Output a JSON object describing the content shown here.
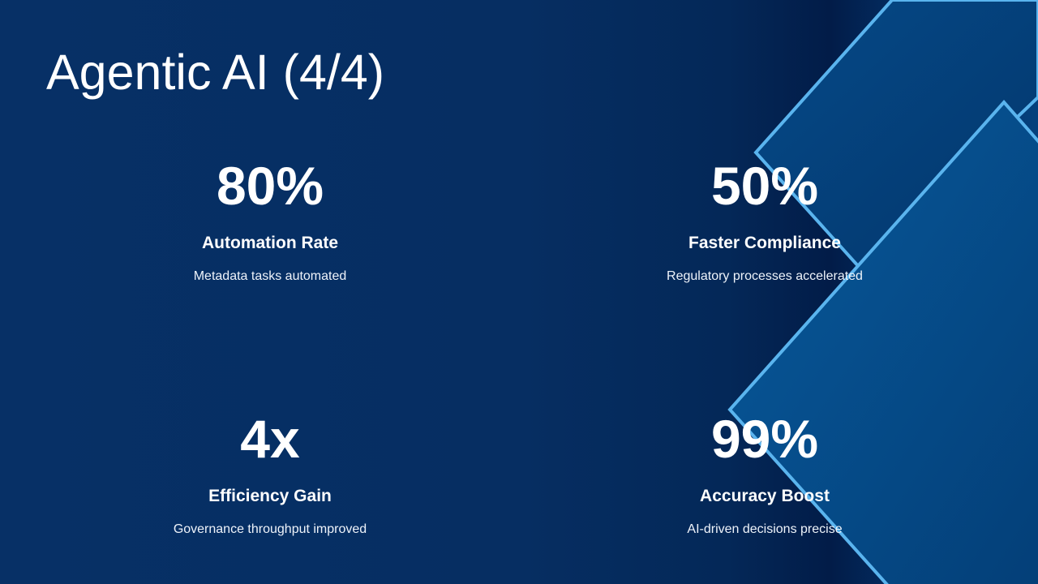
{
  "title": "Agentic AI (4/4)",
  "stats": [
    {
      "value": "80%",
      "label": "Automation Rate",
      "description": "Metadata tasks automated"
    },
    {
      "value": "50%",
      "label": "Faster Compliance",
      "description": "Regulatory processes accelerated"
    },
    {
      "value": "4x",
      "label": "Efficiency Gain",
      "description": "Governance throughput improved"
    },
    {
      "value": "99%",
      "label": "Accuracy Boost",
      "description": "AI-driven decisions precise"
    }
  ],
  "colors": {
    "background": "#062e62",
    "accent_line": "#5ab4ee",
    "shape_fill": "#0a4d8c"
  }
}
